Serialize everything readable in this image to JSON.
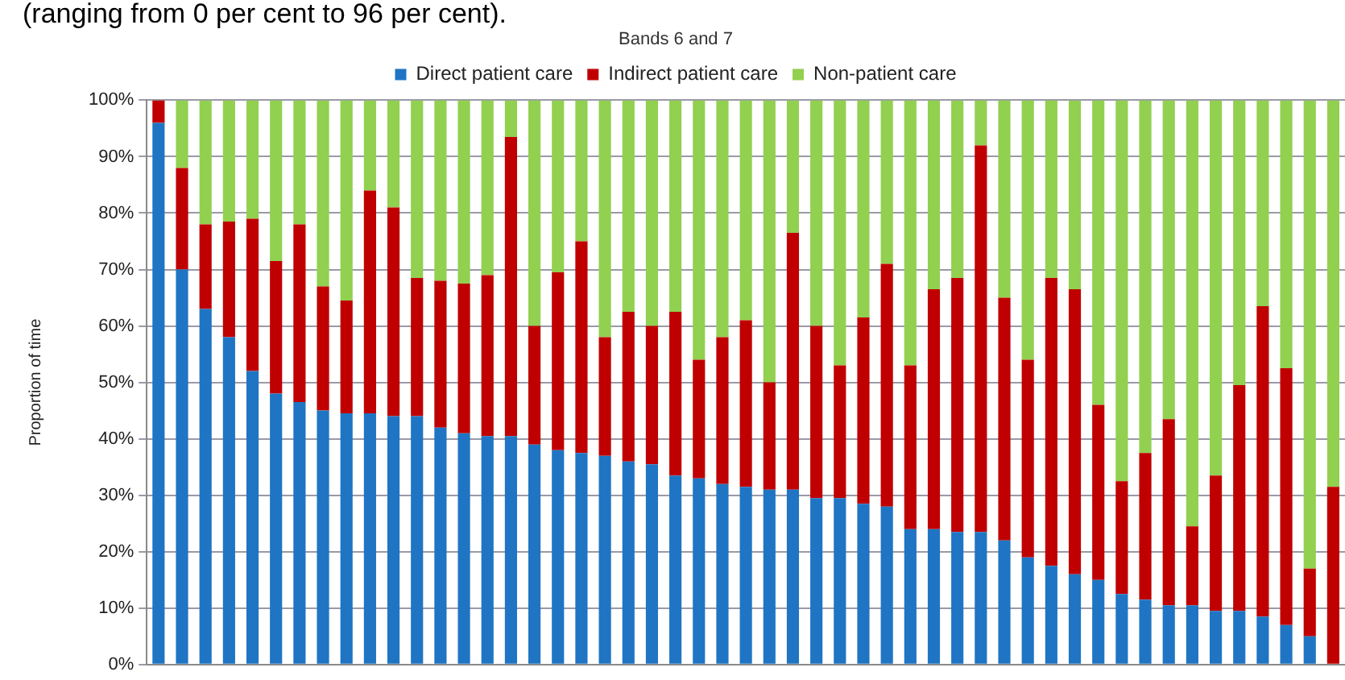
{
  "chart_data": {
    "type": "bar",
    "title": "Bands 6 and 7",
    "annotations": [
      "(ranging from 0 per cent to 96 per cent)."
    ],
    "ylabel": "Proportion of time",
    "categories": [
      null,
      null,
      null,
      null,
      null,
      null,
      null,
      null,
      null,
      null,
      null,
      null,
      null,
      null,
      null,
      null,
      null,
      null,
      null,
      null,
      null,
      null,
      null,
      null,
      null,
      null,
      null,
      null,
      null,
      null,
      null,
      null,
      null,
      null,
      null,
      null,
      null,
      null,
      null,
      null,
      null,
      null,
      null,
      null,
      null,
      null,
      null,
      null,
      null,
      null,
      null
    ],
    "series": [
      {
        "name": "Direct patient care",
        "color": "#1f75c3",
        "values": [
          96,
          70,
          63,
          58,
          52,
          48,
          46.5,
          45,
          44.5,
          44.5,
          44,
          44,
          42,
          41,
          40.5,
          40.5,
          39,
          38,
          37.5,
          37,
          36,
          35.5,
          33.5,
          33,
          32,
          31.5,
          31,
          31,
          29.5,
          29.5,
          28.5,
          28,
          24,
          24,
          23.5,
          23.5,
          22,
          19,
          17.5,
          16,
          15,
          12.5,
          11.5,
          10.5,
          10.5,
          9.5,
          9.5,
          8.5,
          7,
          5,
          0
        ]
      },
      {
        "name": "Indirect patient care",
        "color": "#c00000",
        "values": [
          4,
          18,
          15,
          20.5,
          27,
          23.5,
          31.5,
          22,
          20,
          39.5,
          37,
          24.5,
          26,
          26.5,
          28.5,
          53,
          21,
          31.5,
          37.5,
          21,
          26.5,
          24.5,
          29,
          21,
          26,
          29.5,
          19,
          45.5,
          30.5,
          23.5,
          33,
          43,
          29,
          42.5,
          45,
          68.5,
          43,
          35,
          51,
          50.5,
          31,
          20,
          26,
          33,
          14,
          24,
          40,
          55,
          45.5,
          12,
          31.5
        ]
      },
      {
        "name": "Non-patient care",
        "color": "#92d050",
        "values": [
          0,
          12,
          22,
          21.5,
          21,
          28.5,
          22,
          33,
          35.5,
          16,
          19,
          31.5,
          32,
          32.5,
          31,
          6.5,
          40,
          30.5,
          25,
          42,
          37.5,
          40,
          37.5,
          46,
          42,
          39,
          50,
          23.5,
          40,
          47,
          38.5,
          29,
          47,
          33.5,
          31.5,
          8,
          35,
          46,
          31.5,
          33.5,
          54,
          67.5,
          62.5,
          56.5,
          75.5,
          66.5,
          50.5,
          36.5,
          47.5,
          83,
          68.5
        ]
      }
    ],
    "stacked": true,
    "ylim": [
      0,
      100
    ],
    "yticks": [
      {
        "value": 0,
        "label": "0%"
      },
      {
        "value": 10,
        "label": "10%"
      },
      {
        "value": 20,
        "label": "20%"
      },
      {
        "value": 30,
        "label": "30%"
      },
      {
        "value": 40,
        "label": "40%"
      },
      {
        "value": 50,
        "label": "50%"
      },
      {
        "value": 60,
        "label": "60%"
      },
      {
        "value": 70,
        "label": "70%"
      },
      {
        "value": 80,
        "label": "80%"
      },
      {
        "value": 90,
        "label": "90%"
      },
      {
        "value": 100,
        "label": "100%"
      }
    ],
    "grid": "y",
    "legend": "top",
    "tick_labels": "y"
  }
}
